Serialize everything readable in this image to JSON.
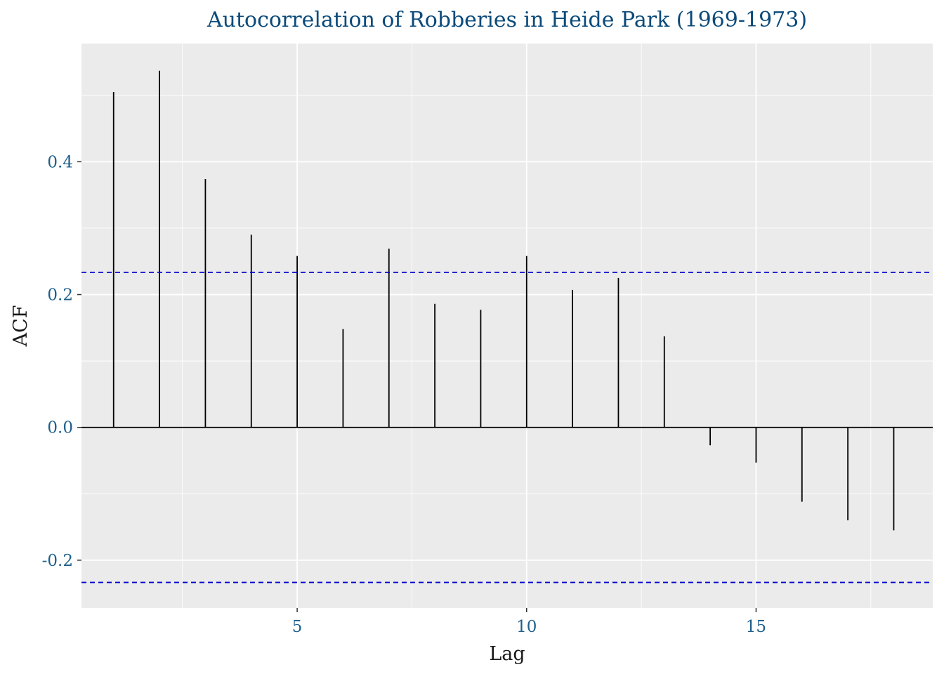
{
  "chart_data": {
    "type": "bar",
    "title": "Autocorrelation of Robberies in Heide Park (1969-1973)",
    "xlabel": "Lag",
    "ylabel": "ACF",
    "x": [
      1,
      2,
      3,
      4,
      5,
      6,
      7,
      8,
      9,
      10,
      11,
      12,
      13,
      14,
      15,
      16,
      17,
      18
    ],
    "values": [
      0.505,
      0.537,
      0.374,
      0.29,
      0.258,
      0.148,
      0.269,
      0.186,
      0.177,
      0.258,
      0.207,
      0.225,
      0.137,
      -0.027,
      -0.053,
      -0.112,
      -0.14,
      -0.155
    ],
    "confidence_band": [
      -0.2335,
      0.2335
    ],
    "xlim": [
      0.3,
      18.85
    ],
    "ylim": [
      -0.272,
      0.578
    ],
    "x_ticks": [
      5,
      10,
      15
    ],
    "x_tick_labels": [
      "5",
      "10",
      "15"
    ],
    "y_ticks": [
      -0.2,
      0.0,
      0.2,
      0.4
    ],
    "y_tick_labels": [
      "-0.2",
      "0.0",
      "0.2",
      "0.4"
    ],
    "grid": true,
    "colors": {
      "panel": "#ebebeb",
      "grid": "#ffffff",
      "stem": "#000000",
      "zero_line": "#000000",
      "band": "#0000cc",
      "title": "#0b4a7a",
      "tick_text": "#1f5f8b",
      "axis_title": "#1a1a1a"
    }
  }
}
